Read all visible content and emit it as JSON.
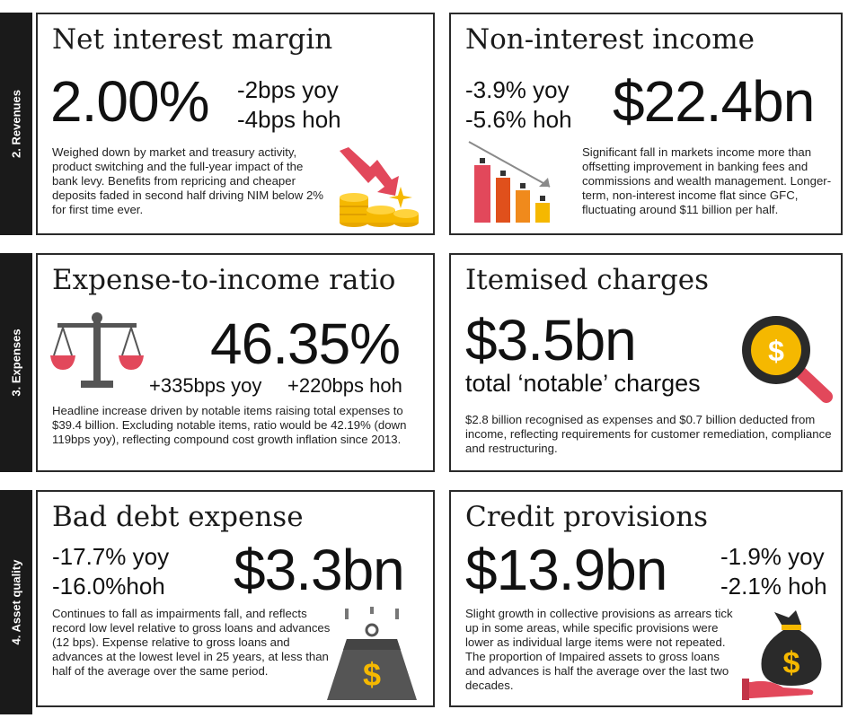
{
  "sections": {
    "revenues": "2. Revenues",
    "expenses": "3. Expenses",
    "asset_quality": "4. Asset quality"
  },
  "nim": {
    "title": "Net interest margin",
    "value": "2.00%",
    "yoy": "-2bps yoy",
    "hoh": "-4bps hoh",
    "body": "Weighed down by market and treasury activity, product switching and the full-year impact of the bank levy. Benefits from repricing and cheaper deposits faded in second half driving NIM below 2% for first time ever."
  },
  "nii": {
    "title": "Non-interest income",
    "value": "$22.4bn",
    "yoy": "-3.9% yoy",
    "hoh": "-5.6% hoh",
    "body": "Significant fall in markets income more than offsetting improvement in banking fees and commissions and wealth management. Longer-term, non-interest income flat since GFC, fluctuating around $11 billion per half."
  },
  "cti": {
    "title": "Expense-to-income ratio",
    "value": "46.35%",
    "yoy": "+335bps yoy",
    "hoh": "+220bps hoh",
    "body": "Headline increase driven by notable items raising total expenses to $39.4 billion. Excluding notable items, ratio would be 42.19% (down 119bps yoy), reflecting compound cost growth inflation since 2013."
  },
  "itemised": {
    "title": "Itemised charges",
    "value": "$3.5bn",
    "subtitle": "total ‘notable’ charges",
    "body": "$2.8 billion recognised as expenses and $0.7 billion deducted from income, reflecting requirements for customer remediation, compliance and restructuring."
  },
  "bde": {
    "title": "Bad debt expense",
    "value": "$3.3bn",
    "yoy": "-17.7% yoy",
    "hoh": "-16.0%hoh",
    "body": "Continues to fall as impairments fall, and reflects record low level relative to gross loans and advances (12 bps). Expense relative to gross loans and advances at the lowest level in 25 years, at less than half of the average over the same period."
  },
  "provisions": {
    "title": "Credit provisions",
    "value": "$13.9bn",
    "yoy": "-1.9% yoy",
    "hoh": "-2.1% hoh",
    "body": "Slight growth in collective provisions as arrears tick up in some areas, while specific provisions were lower as individual large items were not repeated. The proportion of Impaired assets to gross loans and advances is half the average over the last two decades."
  },
  "icons": {
    "nim": "falling-arrow-coins-icon",
    "nii": "declining-bar-chart-icon",
    "cti": "balance-scale-icon",
    "itemised": "magnifier-dollar-icon",
    "bde": "falling-weight-dollar-icon",
    "provisions": "money-bag-hand-icon"
  },
  "colors": {
    "accent_red": "#e2485b",
    "accent_orange": "#f08a1c",
    "accent_gold": "#f5b800",
    "dark": "#1a1a1a",
    "grey": "#6b6b6b"
  }
}
